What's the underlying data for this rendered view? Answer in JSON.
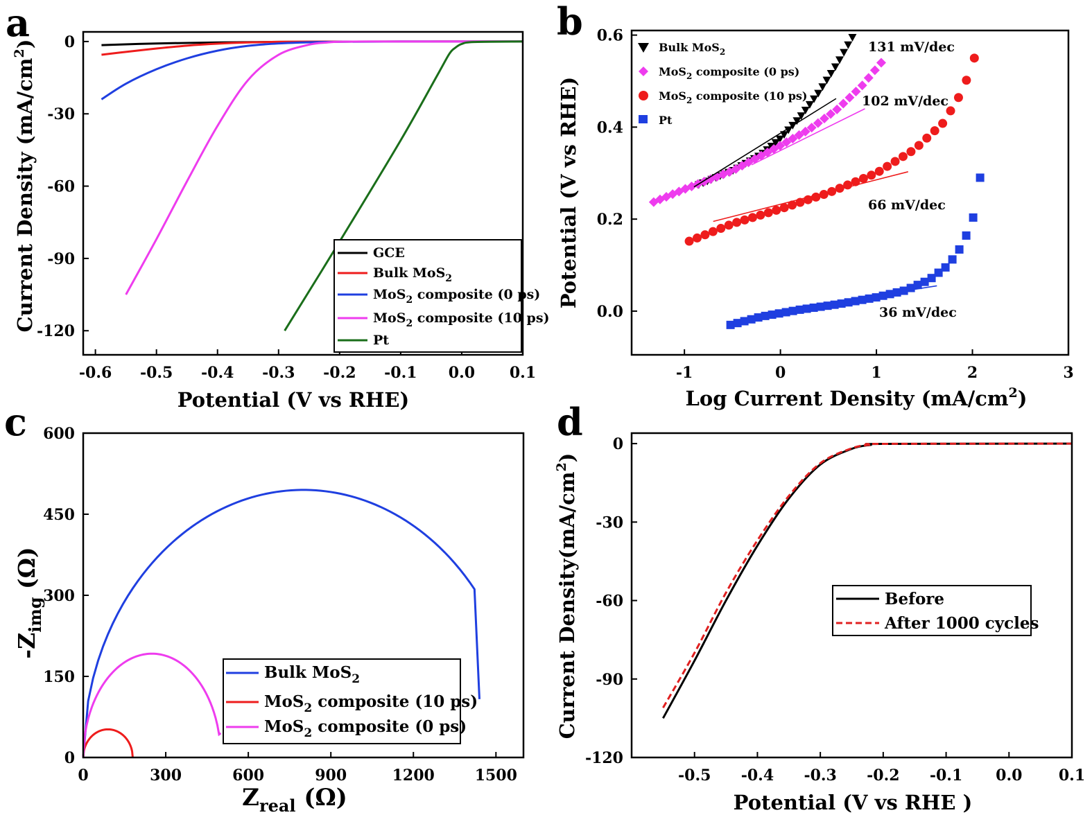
{
  "colors": {
    "black": "#000000",
    "red": "#ee1c1c",
    "blue": "#1f3fe0",
    "magenta": "#ee3cee",
    "green": "#1a6e1a",
    "red_dashed": "#e02020"
  },
  "chart_data": [
    {
      "panel": "a",
      "type": "line",
      "xlabel": "Potential (V vs RHE)",
      "ylabel": "Current Density (mA/cm²)",
      "xlim": [
        -0.62,
        0.1
      ],
      "ylim": [
        -130,
        4
      ],
      "xticks": [
        -0.6,
        -0.5,
        -0.4,
        -0.3,
        -0.2,
        -0.1,
        0.0,
        0.1
      ],
      "xtick_labels": [
        "-0.6",
        "-0.5",
        "-0.4",
        "-0.3",
        "-0.2",
        "-0.1",
        "0.0",
        "0.1"
      ],
      "yticks": [
        0,
        -30,
        -60,
        -90,
        -120
      ],
      "ytick_labels": [
        "0",
        "-30",
        "-60",
        "-90",
        "-120"
      ],
      "legend_position": "bottom-right",
      "series": [
        {
          "name": "GCE",
          "color": "#000000",
          "x": [
            -0.59,
            -0.5,
            -0.4,
            -0.3,
            -0.2,
            -0.1,
            0.0,
            0.1
          ],
          "y": [
            -1.5,
            -0.8,
            -0.4,
            -0.15,
            -0.05,
            0,
            0,
            0
          ]
        },
        {
          "name": "Bulk MoS2",
          "color": "#ee1c1c",
          "x": [
            -0.59,
            -0.55,
            -0.5,
            -0.45,
            -0.4,
            -0.35,
            -0.3,
            -0.2,
            0.1
          ],
          "y": [
            -5.5,
            -4.3,
            -2.9,
            -1.7,
            -0.9,
            -0.4,
            -0.15,
            -0.03,
            0
          ]
        },
        {
          "name": "MoS2 composite (0 ps)",
          "color": "#1f3fe0",
          "x": [
            -0.59,
            -0.55,
            -0.5,
            -0.45,
            -0.4,
            -0.35,
            -0.3,
            -0.25,
            -0.2,
            -0.1,
            0.1
          ],
          "y": [
            -24,
            -17.5,
            -11.5,
            -7,
            -3.8,
            -1.8,
            -0.8,
            -0.3,
            -0.1,
            0,
            0
          ]
        },
        {
          "name": "MoS2 composite (10 ps)",
          "color": "#ee3cee",
          "x": [
            -0.55,
            -0.5,
            -0.45,
            -0.4,
            -0.35,
            -0.3,
            -0.25,
            -0.22,
            -0.2,
            -0.15,
            0.1
          ],
          "y": [
            -105,
            -82,
            -58,
            -35,
            -16,
            -5.5,
            -1.3,
            -0.4,
            -0.1,
            0,
            0
          ]
        },
        {
          "name": "Pt",
          "color": "#1a6e1a",
          "x": [
            -0.29,
            -0.2,
            -0.1,
            -0.04,
            -0.02,
            -0.01,
            0.0,
            0.02,
            0.1
          ],
          "y": [
            -120,
            -83,
            -41,
            -14,
            -5,
            -2.5,
            -1,
            -0.2,
            0
          ]
        }
      ]
    },
    {
      "panel": "b",
      "type": "scatter",
      "xlabel": "Log Current Density (mA/cm²)",
      "ylabel": "Potential (V vs RHE)",
      "xlim": [
        -1.55,
        3
      ],
      "ylim": [
        -0.095,
        0.61
      ],
      "xticks": [
        -1,
        0,
        1,
        2,
        3
      ],
      "xtick_labels": [
        "-1",
        "0",
        "1",
        "2",
        "3"
      ],
      "yticks": [
        0.0,
        0.2,
        0.4,
        0.6
      ],
      "ytick_labels": [
        "0.0",
        "0.2",
        "0.4",
        "0.6"
      ],
      "legend_position": "top-left",
      "series": [
        {
          "name": "Bulk MoS2",
          "marker": "triangle-down",
          "color": "#000000",
          "x": [
            -0.85,
            -0.5,
            -0.2,
            0.0,
            0.2,
            0.4,
            0.6,
            0.75
          ],
          "y": [
            0.275,
            0.305,
            0.34,
            0.375,
            0.42,
            0.475,
            0.54,
            0.595
          ]
        },
        {
          "name": "MoS2 composite (0 ps)",
          "marker": "diamond",
          "color": "#ee3cee",
          "x": [
            -1.32,
            -1.0,
            -0.5,
            0.0,
            0.3,
            0.6,
            0.85,
            1.05
          ],
          "y": [
            0.237,
            0.265,
            0.305,
            0.36,
            0.395,
            0.44,
            0.49,
            0.54
          ]
        },
        {
          "name": "MoS2 composite (10 ps)",
          "marker": "circle",
          "color": "#ee1c1c",
          "x": [
            -0.95,
            -0.5,
            0.0,
            0.5,
            1.0,
            1.4,
            1.7,
            1.9,
            2.02
          ],
          "y": [
            0.152,
            0.19,
            0.222,
            0.257,
            0.3,
            0.352,
            0.41,
            0.48,
            0.55
          ]
        },
        {
          "name": "Pt",
          "marker": "square",
          "color": "#1f3fe0",
          "x": [
            -0.52,
            -0.2,
            0.2,
            0.6,
            1.0,
            1.3,
            1.55,
            1.75,
            1.9,
            2.02,
            2.08
          ],
          "y": [
            -0.03,
            -0.012,
            0.003,
            0.015,
            0.03,
            0.045,
            0.068,
            0.1,
            0.145,
            0.21,
            0.29
          ]
        }
      ],
      "fit_lines": [
        {
          "color": "#000000",
          "x": [
            -0.9,
            0.58
          ],
          "y": [
            0.27,
            0.462
          ]
        },
        {
          "color": "#ee3cee",
          "x": [
            -0.3,
            0.88
          ],
          "y": [
            0.318,
            0.44
          ]
        },
        {
          "color": "#ee1c1c",
          "x": [
            -0.7,
            1.33
          ],
          "y": [
            0.195,
            0.303
          ]
        },
        {
          "color": "#1f3fe0",
          "x": [
            -0.2,
            1.63
          ],
          "y": [
            -0.005,
            0.055
          ]
        }
      ],
      "annotations": [
        "131 mV/dec",
        "102 mV/dec",
        "66 mV/dec",
        "36 mV/dec"
      ]
    },
    {
      "panel": "c",
      "type": "line",
      "xlabel": "Zreal (Ω)",
      "ylabel": "-Zimg (Ω)",
      "xlim": [
        0,
        1600
      ],
      "ylim": [
        0,
        600
      ],
      "xticks": [
        0,
        300,
        600,
        900,
        1200,
        1500
      ],
      "xtick_labels": [
        "0",
        "300",
        "600",
        "900",
        "1200",
        "1500"
      ],
      "yticks": [
        0,
        150,
        300,
        450,
        600
      ],
      "ytick_labels": [
        "0",
        "150",
        "300",
        "450",
        "600"
      ],
      "legend_position": "bottom-center",
      "series": [
        {
          "name": "Bulk MoS2",
          "color": "#1f3fe0",
          "shape": "arc",
          "start": 0,
          "end": 1440,
          "center_x": 800,
          "peak": 495,
          "end_y": 108
        },
        {
          "name": "MoS2 composite (10 ps)",
          "color": "#ee1c1c",
          "shape": "arc",
          "start": 0,
          "end": 180,
          "center_x": 90,
          "peak": 52,
          "end_y": 0
        },
        {
          "name": "MoS2 composite (0 ps)",
          "color": "#ee3cee",
          "shape": "arc",
          "start": 0,
          "end": 500,
          "center_x": 250,
          "peak": 192,
          "end_y": 45
        }
      ]
    },
    {
      "panel": "d",
      "type": "line",
      "xlabel": "Potential (V vs RHE )",
      "ylabel": "Current Density(mA/cm²)",
      "xlim": [
        -0.6,
        0.1
      ],
      "ylim": [
        -120,
        4
      ],
      "xticks": [
        -0.5,
        -0.4,
        -0.3,
        -0.2,
        -0.1,
        0.0,
        0.1
      ],
      "xtick_labels": [
        "-0.5",
        "-0.4",
        "-0.3",
        "-0.2",
        "-0.1",
        "0.0",
        "0.1"
      ],
      "yticks": [
        0,
        -30,
        -60,
        -90,
        -120
      ],
      "ytick_labels": [
        "0",
        "-30",
        "-60",
        "-90",
        "-120"
      ],
      "legend_position": "center-right",
      "series": [
        {
          "name": "Before",
          "color": "#000000",
          "dash": false,
          "x": [
            -0.55,
            -0.5,
            -0.45,
            -0.4,
            -0.35,
            -0.3,
            -0.25,
            -0.22,
            -0.2,
            0.1
          ],
          "y": [
            -105,
            -83,
            -60,
            -39,
            -21,
            -8,
            -2,
            -0.5,
            -0.1,
            0
          ]
        },
        {
          "name": "After 1000 cycles",
          "color": "#e02020",
          "dash": true,
          "x": [
            -0.55,
            -0.5,
            -0.45,
            -0.4,
            -0.35,
            -0.3,
            -0.25,
            -0.22,
            -0.2,
            0.1
          ],
          "y": [
            -101,
            -80,
            -57,
            -37,
            -20,
            -7.5,
            -1.8,
            -0.4,
            -0.1,
            0
          ]
        }
      ]
    }
  ],
  "panels": {
    "a": {
      "letter": "a",
      "ylabel_main": "Current Density (mA/cm",
      "ylabel_sup": "2",
      "ylabel_end": ")",
      "xlabel": "Potential (V vs RHE)",
      "legend": {
        "gce": "GCE",
        "bulk": "Bulk MoS",
        "bulk_sub": "2",
        "c0_pre": "MoS",
        "c0_sub": "2",
        "c0_post": " composite (0 ps)",
        "c10_pre": "MoS",
        "c10_sub": "2",
        "c10_post": " composite (10 ps)",
        "pt": "Pt"
      }
    },
    "b": {
      "letter": "b",
      "ylabel": "Potential (V vs RHE)",
      "xlabel_main": "Log Current Density (mA/cm",
      "xlabel_sup": "2",
      "xlabel_end": ")",
      "legend": {
        "bulk": "Bulk MoS",
        "bulk_sub": "2",
        "c0_pre": "MoS",
        "c0_sub": "2",
        "c0_post": " composite (0 ps)",
        "c10_pre": "MoS",
        "c10_sub": "2",
        "c10_post": " composite (10 ps)",
        "pt": "Pt"
      },
      "annotations": {
        "a131": "131 mV/dec",
        "a102": "102 mV/dec",
        "a66": "66 mV/dec",
        "a36": "36 mV/dec"
      }
    },
    "c": {
      "letter": "c",
      "ylabel_main": "-Z",
      "ylabel_sub": "img",
      "ylabel_end": " (Ω)",
      "xlabel_main": "Z",
      "xlabel_sub": "real",
      "xlabel_end": " (Ω)",
      "legend": {
        "bulk": "Bulk MoS",
        "bulk_sub": "2",
        "c10_pre": "MoS",
        "c10_sub": "2",
        "c10_post": " composite (10 ps)",
        "c0_pre": "MoS",
        "c0_sub": "2",
        "c0_post": " composite (0 ps)"
      }
    },
    "d": {
      "letter": "d",
      "ylabel_main": "Current Density(mA/cm",
      "ylabel_sup": "2",
      "ylabel_end": ")",
      "xlabel": "Potential (V vs RHE )",
      "legend": {
        "before": "Before",
        "after": "After 1000 cycles"
      }
    }
  }
}
